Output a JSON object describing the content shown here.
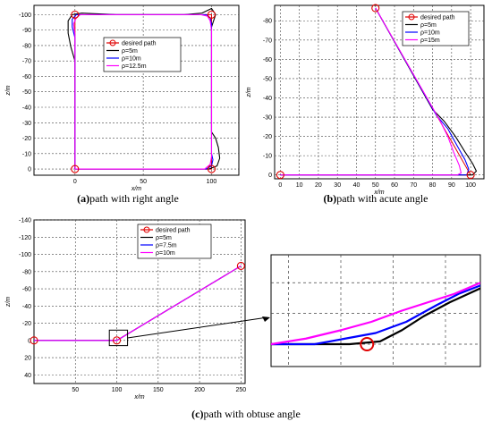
{
  "colors": {
    "desired": "#e00000",
    "black": "#000000",
    "blue": "#0000ff",
    "magenta": "#ff00ff",
    "grid": "#444444"
  },
  "chart_data": [
    {
      "id": "a",
      "type": "line",
      "caption_letter": "(a)",
      "caption_text": "path with right angle",
      "xlabel": "x/m",
      "ylabel": "z/m",
      "xticks": [
        0,
        50,
        100
      ],
      "yticks": [
        -100,
        -90,
        -80,
        -70,
        -60,
        -50,
        -40,
        -30,
        -20,
        -10,
        0
      ],
      "xlim": [
        -30,
        120
      ],
      "ylim": [
        -106,
        4
      ],
      "y_reversed": true,
      "grid": true,
      "legend": {
        "position": "upper-center",
        "entries": [
          "desired path",
          "ρ=5m",
          "ρ=10m",
          "ρ=12.5m"
        ]
      },
      "desired_path": [
        [
          0,
          0
        ],
        [
          0,
          -100
        ],
        [
          100,
          -100
        ],
        [
          100,
          0
        ],
        [
          0,
          0
        ]
      ],
      "series": [
        {
          "name": "ρ=5m",
          "color_key": "black",
          "points": [
            [
              0,
              0
            ],
            [
              0,
              -70
            ],
            [
              -3,
              -79
            ],
            [
              -5,
              -88
            ],
            [
              -5,
              -96
            ],
            [
              -2,
              -100
            ],
            [
              5,
              -101
            ],
            [
              30,
              -100
            ],
            [
              80,
              -100
            ],
            [
              93,
              -101
            ],
            [
              100,
              -104
            ],
            [
              103,
              -100
            ],
            [
              100,
              -92
            ],
            [
              100,
              -30
            ],
            [
              100,
              -24
            ],
            [
              103,
              -20
            ],
            [
              105,
              -14
            ],
            [
              106,
              -7
            ],
            [
              104,
              -2
            ],
            [
              98,
              0
            ],
            [
              90,
              0
            ],
            [
              0,
              0
            ]
          ]
        },
        {
          "name": "ρ=10m",
          "color_key": "blue",
          "points": [
            [
              0,
              0
            ],
            [
              0,
              -85
            ],
            [
              -2,
              -92
            ],
            [
              -2,
              -97
            ],
            [
              1,
              -100
            ],
            [
              5,
              -100
            ],
            [
              90,
              -100
            ],
            [
              96,
              -100
            ],
            [
              99,
              -98
            ],
            [
              100,
              -94
            ],
            [
              100,
              -10
            ],
            [
              101,
              -6
            ],
            [
              100,
              -2
            ],
            [
              96,
              0
            ],
            [
              0,
              0
            ]
          ]
        },
        {
          "name": "ρ=12.5m",
          "color_key": "magenta",
          "points": [
            [
              0,
              0
            ],
            [
              0,
              -87
            ],
            [
              -1,
              -94
            ],
            [
              1,
              -98
            ],
            [
              4,
              -100
            ],
            [
              92,
              -100
            ],
            [
              97,
              -99
            ],
            [
              99,
              -96
            ],
            [
              100,
              -90
            ],
            [
              100,
              -8
            ],
            [
              99,
              -3
            ],
            [
              95,
              0
            ],
            [
              0,
              0
            ]
          ]
        }
      ]
    },
    {
      "id": "b",
      "type": "line",
      "caption_letter": "(b)",
      "caption_text": "path with acute angle",
      "xlabel": "x/m",
      "ylabel": "z/m",
      "xticks": [
        0,
        10,
        20,
        30,
        40,
        50,
        60,
        70,
        80,
        90,
        100
      ],
      "yticks": [
        -80,
        -70,
        -60,
        -50,
        -40,
        -30,
        -20,
        -10,
        0
      ],
      "xlim": [
        -3,
        107
      ],
      "ylim": [
        -88,
        2
      ],
      "y_reversed": true,
      "grid": true,
      "legend": {
        "position": "top-right",
        "entries": [
          "desired path",
          "ρ=5m",
          "ρ=10m",
          "ρ=15m"
        ]
      },
      "desired_path": [
        [
          50,
          -86.6
        ],
        [
          100,
          0
        ],
        [
          0,
          0
        ]
      ],
      "series": [
        {
          "name": "ρ=5m",
          "color_key": "black",
          "points": [
            [
              50,
              -86.6
            ],
            [
              80,
              -34
            ],
            [
              86,
              -28
            ],
            [
              92,
              -20
            ],
            [
              97,
              -12
            ],
            [
              101,
              -6
            ],
            [
              103,
              -2
            ],
            [
              101,
              0
            ],
            [
              96,
              0
            ],
            [
              0,
              0
            ]
          ]
        },
        {
          "name": "ρ=10m",
          "color_key": "blue",
          "points": [
            [
              50,
              -86.6
            ],
            [
              82,
              -31
            ],
            [
              88,
              -24
            ],
            [
              93,
              -15
            ],
            [
              97,
              -8
            ],
            [
              99,
              -3
            ],
            [
              98,
              0
            ],
            [
              93,
              0
            ],
            [
              0,
              0
            ]
          ]
        },
        {
          "name": "ρ=15m",
          "color_key": "magenta",
          "points": [
            [
              50,
              -86.6
            ],
            [
              84,
              -28
            ],
            [
              88,
              -20
            ],
            [
              91,
              -12
            ],
            [
              94,
              -5
            ],
            [
              95,
              -1
            ],
            [
              93,
              0
            ],
            [
              88,
              0
            ],
            [
              0,
              0
            ]
          ]
        }
      ]
    },
    {
      "id": "c",
      "type": "line",
      "caption_letter": "(c)",
      "caption_text": "path with obtuse angle",
      "xlabel": "x/m",
      "ylabel": "z/m",
      "xticks": [
        50,
        100,
        150,
        200,
        250
      ],
      "yticks": [
        -140,
        -120,
        -100,
        -80,
        -60,
        -40,
        -20,
        0,
        20,
        40
      ],
      "xlim": [
        0,
        255
      ],
      "ylim": [
        -140,
        50
      ],
      "y_reversed": true,
      "grid": true,
      "legend": {
        "position": "top-right",
        "entries": [
          "desired path",
          "ρ=5m",
          "ρ=7.5m",
          "ρ=10m"
        ]
      },
      "desired_path": [
        [
          0,
          0
        ],
        [
          100,
          0
        ],
        [
          250,
          -86.6
        ]
      ],
      "series": [
        {
          "name": "ρ=5m",
          "color_key": "black",
          "points": [
            [
              0,
              0
            ],
            [
              100,
              0
            ],
            [
              250,
              -86.6
            ]
          ]
        },
        {
          "name": "ρ=7.5m",
          "color_key": "blue",
          "points": [
            [
              0,
              0
            ],
            [
              100,
              0
            ],
            [
              250,
              -86.6
            ]
          ]
        },
        {
          "name": "ρ=10m",
          "color_key": "magenta",
          "points": [
            [
              0,
              0
            ],
            [
              100,
              0
            ],
            [
              250,
              -86.6
            ]
          ]
        }
      ],
      "inset_box": {
        "x": [
          91,
          113
        ],
        "z": [
          -12,
          6
        ]
      }
    },
    {
      "id": "zoom",
      "type": "line",
      "zoom_of": "c",
      "xlim": [
        78,
        126
      ],
      "ylim": [
        -32,
        8
      ],
      "y_reversed": true,
      "grid": true,
      "desired_point": [
        100,
        0
      ],
      "series": [
        {
          "name": "ρ=5m",
          "color_key": "black",
          "points": [
            [
              78,
              0
            ],
            [
              96,
              0
            ],
            [
              103,
              -1
            ],
            [
              108,
              -5
            ],
            [
              113,
              -10
            ],
            [
              119,
              -15
            ],
            [
              126,
              -20
            ]
          ]
        },
        {
          "name": "ρ=7.5m",
          "color_key": "blue",
          "points": [
            [
              78,
              0
            ],
            [
              88,
              0
            ],
            [
              95,
              -2
            ],
            [
              102,
              -4
            ],
            [
              109,
              -8
            ],
            [
              116,
              -14
            ],
            [
              121,
              -18
            ],
            [
              126,
              -21
            ]
          ]
        },
        {
          "name": "ρ=10m",
          "color_key": "magenta",
          "points": [
            [
              78,
              0
            ],
            [
              86,
              -2
            ],
            [
              94,
              -5
            ],
            [
              101,
              -8
            ],
            [
              108,
              -12
            ],
            [
              114,
              -15
            ],
            [
              120,
              -18
            ],
            [
              126,
              -22
            ]
          ]
        }
      ]
    }
  ]
}
